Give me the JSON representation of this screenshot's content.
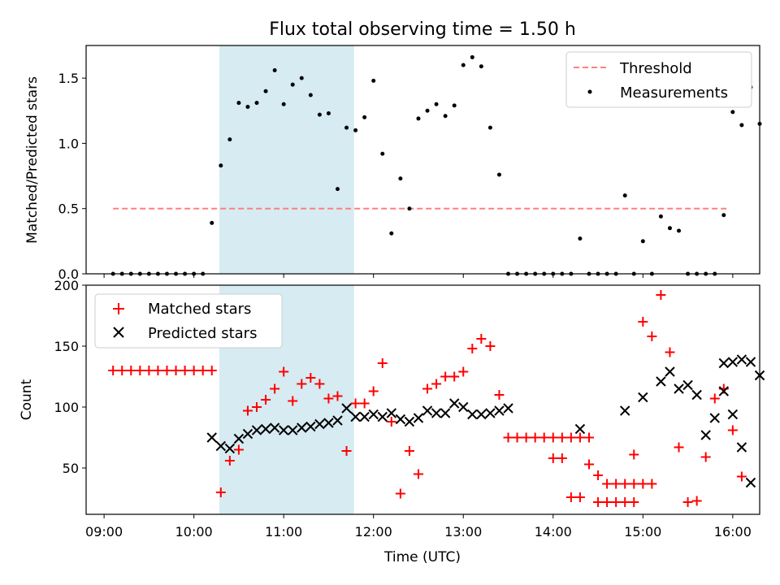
{
  "title": "Flux total observing time = 1.50 h",
  "highlight_span": {
    "start": "10:17",
    "end": "11:47"
  },
  "colors": {
    "matched": "#ff0000",
    "predicted": "#000000",
    "threshold": "#ff7f7f",
    "measurements": "#000000",
    "highlight": "#add8e6"
  },
  "x_ticks": [
    "09:00",
    "10:00",
    "11:00",
    "12:00",
    "13:00",
    "14:00",
    "15:00",
    "16:00"
  ],
  "xlabel": "Time (UTC)",
  "chart_data": [
    {
      "type": "scatter",
      "name": "ratio-panel",
      "ylabel": "Matched/Predicted stars",
      "xlim": [
        "08:48",
        "16:18"
      ],
      "ylim": [
        0,
        1.75
      ],
      "y_ticks": [
        "0.0",
        "0.5",
        "1.0",
        "1.5"
      ],
      "legend_position": "top-right",
      "threshold": {
        "label": "Threshold",
        "value": 0.5,
        "x_range": [
          "09:06",
          "15:56"
        ]
      },
      "measurements_label": "Measurements",
      "measurements": [
        [
          "09:06",
          0.0
        ],
        [
          "09:12",
          0.0
        ],
        [
          "09:18",
          0.0
        ],
        [
          "09:24",
          0.0
        ],
        [
          "09:30",
          0.0
        ],
        [
          "09:36",
          0.0
        ],
        [
          "09:42",
          0.0
        ],
        [
          "09:48",
          0.0
        ],
        [
          "09:54",
          0.0
        ],
        [
          "10:00",
          0.0
        ],
        [
          "10:06",
          0.0
        ],
        [
          "10:12",
          0.39
        ],
        [
          "10:18",
          0.83
        ],
        [
          "10:24",
          1.03
        ],
        [
          "10:30",
          1.31
        ],
        [
          "10:36",
          1.28
        ],
        [
          "10:42",
          1.31
        ],
        [
          "10:48",
          1.4
        ],
        [
          "10:54",
          1.56
        ],
        [
          "11:00",
          1.3
        ],
        [
          "11:06",
          1.45
        ],
        [
          "11:12",
          1.5
        ],
        [
          "11:18",
          1.37
        ],
        [
          "11:24",
          1.22
        ],
        [
          "11:30",
          1.23
        ],
        [
          "11:36",
          0.65
        ],
        [
          "11:42",
          1.12
        ],
        [
          "11:48",
          1.1
        ],
        [
          "11:54",
          1.2
        ],
        [
          "12:00",
          1.48
        ],
        [
          "12:06",
          0.92
        ],
        [
          "12:12",
          0.31
        ],
        [
          "12:18",
          0.73
        ],
        [
          "12:24",
          0.5
        ],
        [
          "12:30",
          1.19
        ],
        [
          "12:36",
          1.25
        ],
        [
          "12:42",
          1.3
        ],
        [
          "12:48",
          1.21
        ],
        [
          "12:54",
          1.29
        ],
        [
          "13:00",
          1.6
        ],
        [
          "13:06",
          1.66
        ],
        [
          "13:12",
          1.59
        ],
        [
          "13:18",
          1.12
        ],
        [
          "13:24",
          0.76
        ],
        [
          "13:30",
          0.0
        ],
        [
          "13:36",
          0.0
        ],
        [
          "13:42",
          0.0
        ],
        [
          "13:48",
          0.0
        ],
        [
          "13:54",
          0.0
        ],
        [
          "14:00",
          0.0
        ],
        [
          "14:06",
          0.0
        ],
        [
          "14:12",
          0.0
        ],
        [
          "14:18",
          0.27
        ],
        [
          "14:24",
          0.0
        ],
        [
          "14:30",
          0.0
        ],
        [
          "14:36",
          0.0
        ],
        [
          "14:42",
          0.0
        ],
        [
          "14:48",
          0.6
        ],
        [
          "14:54",
          0.0
        ],
        [
          "15:00",
          0.25
        ],
        [
          "15:06",
          0.0
        ],
        [
          "15:12",
          0.44
        ],
        [
          "15:18",
          0.35
        ],
        [
          "15:24",
          0.33
        ],
        [
          "15:30",
          0.0
        ],
        [
          "15:36",
          0.0
        ],
        [
          "15:42",
          0.0
        ],
        [
          "15:48",
          0.0
        ],
        [
          "15:54",
          0.45
        ],
        [
          "16:00",
          1.24
        ],
        [
          "16:06",
          1.14
        ],
        [
          "16:12",
          1.43
        ],
        [
          "16:18",
          1.15
        ]
      ]
    },
    {
      "type": "scatter",
      "name": "count-panel",
      "ylabel": "Count",
      "xlim": [
        "08:48",
        "16:18"
      ],
      "ylim": [
        12,
        200
      ],
      "y_ticks": [
        "50",
        "100",
        "150",
        "200"
      ],
      "legend_position": "top-left",
      "series": [
        {
          "name": "Matched stars",
          "marker": "plus",
          "points": [
            [
              "09:06",
              130
            ],
            [
              "09:12",
              130
            ],
            [
              "09:18",
              130
            ],
            [
              "09:24",
              130
            ],
            [
              "09:30",
              130
            ],
            [
              "09:36",
              130
            ],
            [
              "09:42",
              130
            ],
            [
              "09:48",
              130
            ],
            [
              "09:54",
              130
            ],
            [
              "10:00",
              130
            ],
            [
              "10:06",
              130
            ],
            [
              "10:12",
              130
            ],
            [
              "10:18",
              30
            ],
            [
              "10:24",
              56
            ],
            [
              "10:30",
              65
            ],
            [
              "10:36",
              97
            ],
            [
              "10:42",
              100
            ],
            [
              "10:48",
              106
            ],
            [
              "10:54",
              115
            ],
            [
              "11:00",
              129
            ],
            [
              "11:06",
              105
            ],
            [
              "11:12",
              119
            ],
            [
              "11:18",
              124
            ],
            [
              "11:24",
              119
            ],
            [
              "11:30",
              107
            ],
            [
              "11:36",
              109
            ],
            [
              "11:42",
              64
            ],
            [
              "11:48",
              103
            ],
            [
              "11:54",
              103
            ],
            [
              "12:00",
              113
            ],
            [
              "12:06",
              136
            ],
            [
              "12:12",
              88
            ],
            [
              "12:18",
              29
            ],
            [
              "12:24",
              64
            ],
            [
              "12:30",
              45
            ],
            [
              "12:36",
              115
            ],
            [
              "12:42",
              119
            ],
            [
              "12:48",
              125
            ],
            [
              "12:54",
              125
            ],
            [
              "13:00",
              129
            ],
            [
              "13:06",
              148
            ],
            [
              "13:12",
              156
            ],
            [
              "13:18",
              150
            ],
            [
              "13:24",
              110
            ],
            [
              "13:30",
              75
            ],
            [
              "13:36",
              75
            ],
            [
              "13:42",
              75
            ],
            [
              "13:48",
              75
            ],
            [
              "13:54",
              75
            ],
            [
              "14:00",
              75
            ],
            [
              "14:06",
              75
            ],
            [
              "14:12",
              75
            ],
            [
              "14:18",
              75
            ],
            [
              "14:24",
              75
            ],
            [
              "14:30",
              22
            ],
            [
              "14:36",
              22
            ],
            [
              "14:42",
              22
            ],
            [
              "14:48",
              22
            ],
            [
              "14:54",
              22
            ],
            [
              "14:00",
              58
            ],
            [
              "14:06",
              58
            ],
            [
              "14:12",
              26
            ],
            [
              "14:18",
              26
            ],
            [
              "14:24",
              53
            ],
            [
              "14:30",
              44
            ],
            [
              "14:36",
              37
            ],
            [
              "14:42",
              37
            ],
            [
              "14:48",
              37
            ],
            [
              "14:54",
              37
            ],
            [
              "15:00",
              37
            ],
            [
              "15:06",
              37
            ],
            [
              "14:54",
              61
            ],
            [
              "15:00",
              170
            ],
            [
              "15:06",
              158
            ],
            [
              "15:12",
              192
            ],
            [
              "15:18",
              145
            ],
            [
              "15:24",
              67
            ],
            [
              "15:30",
              22
            ],
            [
              "15:36",
              23
            ],
            [
              "15:42",
              59
            ],
            [
              "15:48",
              107
            ],
            [
              "15:54",
              115
            ],
            [
              "16:00",
              81
            ],
            [
              "16:06",
              43
            ]
          ]
        },
        {
          "name": "Predicted stars",
          "marker": "x",
          "points": [
            [
              "10:12",
              75
            ],
            [
              "10:18",
              68
            ],
            [
              "10:24",
              66
            ],
            [
              "10:30",
              74
            ],
            [
              "10:36",
              78
            ],
            [
              "10:42",
              81
            ],
            [
              "10:48",
              82
            ],
            [
              "10:54",
              83
            ],
            [
              "11:00",
              81
            ],
            [
              "11:06",
              81
            ],
            [
              "11:12",
              83
            ],
            [
              "11:18",
              84
            ],
            [
              "11:24",
              86
            ],
            [
              "11:30",
              87
            ],
            [
              "11:36",
              89
            ],
            [
              "11:42",
              99
            ],
            [
              "11:48",
              92
            ],
            [
              "11:54",
              92
            ],
            [
              "12:00",
              94
            ],
            [
              "12:06",
              92
            ],
            [
              "12:12",
              95
            ],
            [
              "12:18",
              90
            ],
            [
              "12:24",
              88
            ],
            [
              "12:30",
              91
            ],
            [
              "12:36",
              97
            ],
            [
              "12:42",
              95
            ],
            [
              "12:48",
              95
            ],
            [
              "12:54",
              103
            ],
            [
              "13:00",
              100
            ],
            [
              "13:06",
              94
            ],
            [
              "13:12",
              94
            ],
            [
              "13:18",
              95
            ],
            [
              "13:24",
              97
            ],
            [
              "13:30",
              99
            ],
            [
              "14:18",
              82
            ],
            [
              "14:48",
              97
            ],
            [
              "15:00",
              108
            ],
            [
              "15:12",
              121
            ],
            [
              "15:18",
              129
            ],
            [
              "15:24",
              115
            ],
            [
              "15:54",
              136
            ],
            [
              "16:00",
              137
            ],
            [
              "16:06",
              139
            ],
            [
              "16:12",
              137
            ],
            [
              "16:18",
              126
            ],
            [
              "15:30",
              118
            ],
            [
              "15:36",
              110
            ],
            [
              "15:42",
              77
            ],
            [
              "15:48",
              91
            ],
            [
              "15:54",
              113
            ],
            [
              "16:00",
              94
            ],
            [
              "16:06",
              67
            ],
            [
              "16:12",
              38
            ]
          ]
        }
      ]
    }
  ]
}
